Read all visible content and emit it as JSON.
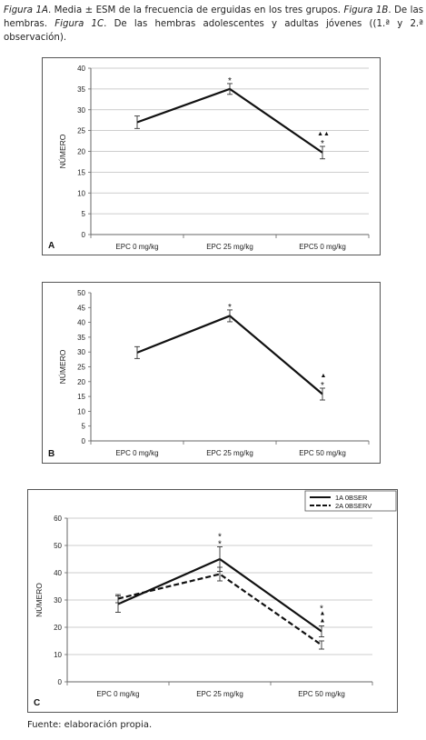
{
  "caption": {
    "fig1a": "Figura 1A",
    "text1": ". Media ± ESM de la frecuencia de erguidas en los tres grupos. ",
    "fig1b": "Figura 1B",
    "text2": ". De las hembras. ",
    "fig1c": "Figura 1C",
    "text3": ". De las hembras adolescentes y adultas jóvenes ((1.ª y 2.ª observación)."
  },
  "source": "Fuente: elaboración propia.",
  "chart_data": [
    {
      "type": "line",
      "panel_label": "A",
      "ylabel": "NÚMERO",
      "categories": [
        "EPC 0 mg/kg",
        "EPC 25 mg/kg",
        "EPC5 0 mg/kg"
      ],
      "ylim": [
        0,
        40
      ],
      "yticks": [
        0,
        5,
        10,
        15,
        20,
        25,
        30,
        35,
        40
      ],
      "grid": true,
      "series": [
        {
          "values": [
            27,
            35,
            19.7
          ],
          "errors": [
            1.5,
            1.3,
            1.5
          ],
          "dash": false
        }
      ],
      "annotations": [
        {
          "category": 1,
          "text": "*"
        },
        {
          "category": 2,
          "text": "*"
        },
        {
          "category": 2,
          "text": "▲▲"
        }
      ]
    },
    {
      "type": "line",
      "panel_label": "B",
      "ylabel": "NÚMERO",
      "categories": [
        "EPC 0 mg/kg",
        "EPC 25 mg/kg",
        "EPC 50 mg/kg"
      ],
      "ylim": [
        0,
        50
      ],
      "yticks": [
        0,
        5,
        10,
        15,
        20,
        25,
        30,
        35,
        40,
        45,
        50
      ],
      "grid": false,
      "series": [
        {
          "values": [
            29.8,
            42.2,
            15.8
          ],
          "errors": [
            2,
            2,
            2
          ],
          "dash": false
        }
      ],
      "annotations": [
        {
          "category": 1,
          "text": "*"
        },
        {
          "category": 2,
          "text": "*"
        },
        {
          "category": 2,
          "text": "▲"
        }
      ]
    },
    {
      "type": "line",
      "panel_label": "C",
      "ylabel": "NÚMERO",
      "categories": [
        "EPC 0 mg/kg",
        "EPC 25 mg/kg",
        "EPC 50 mg/kg"
      ],
      "ylim": [
        0,
        60
      ],
      "yticks": [
        0,
        10,
        20,
        30,
        40,
        50,
        60
      ],
      "grid": true,
      "legend": "top-right",
      "series": [
        {
          "name": "1A 0BSER",
          "values": [
            28.5,
            45,
            18.5
          ],
          "errors": [
            3,
            4.5,
            2
          ],
          "dash": false
        },
        {
          "name": "2A 0BSERV",
          "values": [
            30.5,
            39.5,
            13.5
          ],
          "errors": [
            1.5,
            2.5,
            1.5
          ],
          "dash": true
        }
      ],
      "annotations": [
        {
          "category": 1,
          "text": "*"
        },
        {
          "category": 1,
          "text": "*"
        },
        {
          "category": 2,
          "text": "▲"
        },
        {
          "category": 2,
          "text": "▲"
        },
        {
          "category": 2,
          "text": "*"
        }
      ]
    }
  ]
}
